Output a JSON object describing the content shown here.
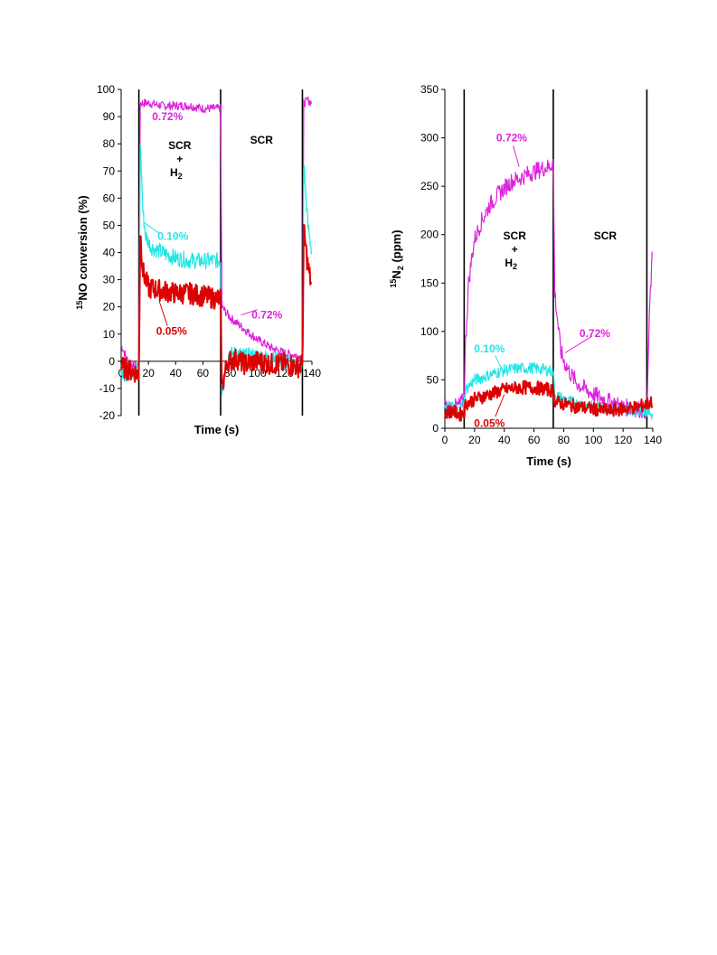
{
  "colors": {
    "magenta": "#dd22dd",
    "cyan": "#22e5e5",
    "red": "#dd0000",
    "axis": "#000000",
    "divider": "#000000"
  },
  "chart_data": [
    {
      "type": "line",
      "xlabel": "Time (s)",
      "ylabel_sup": "15",
      "ylabel_main": "NO conversion (%)",
      "xlim": [
        0,
        140
      ],
      "ylim": [
        -20,
        100
      ],
      "xticks": [
        0,
        20,
        40,
        60,
        80,
        100,
        120,
        140
      ],
      "yticks": [
        -20,
        -10,
        0,
        10,
        20,
        30,
        40,
        50,
        60,
        70,
        80,
        90,
        100
      ],
      "dividers_x": [
        13,
        73,
        133
      ],
      "regions": [
        {
          "lines": [
            "SCR",
            "+"
          ],
          "h2": "H",
          "h2sub": "2",
          "x": 43,
          "y": 78
        },
        {
          "lines": [
            "SCR"
          ],
          "x": 103,
          "y": 80
        }
      ],
      "series": [
        {
          "name": "0.72%",
          "color": "magenta",
          "points": [
            [
              0,
              6
            ],
            [
              5,
              0
            ],
            [
              10,
              -2
            ],
            [
              13,
              -1
            ],
            [
              14,
              95
            ],
            [
              20,
              95
            ],
            [
              30,
              94
            ],
            [
              40,
              94
            ],
            [
              50,
              94
            ],
            [
              60,
              93
            ],
            [
              70,
              93
            ],
            [
              73,
              93
            ],
            [
              74,
              20
            ],
            [
              80,
              16
            ],
            [
              90,
              12
            ],
            [
              100,
              8
            ],
            [
              110,
              5
            ],
            [
              120,
              3
            ],
            [
              130,
              2
            ],
            [
              133,
              1
            ],
            [
              134,
              95
            ],
            [
              137,
              96
            ],
            [
              140,
              95
            ]
          ]
        },
        {
          "name": "0.10%",
          "color": "cyan",
          "points": [
            [
              0,
              -4
            ],
            [
              5,
              -5
            ],
            [
              10,
              -3
            ],
            [
              13,
              -2
            ],
            [
              14,
              81
            ],
            [
              16,
              55
            ],
            [
              18,
              46
            ],
            [
              22,
              42
            ],
            [
              30,
              40
            ],
            [
              40,
              38
            ],
            [
              50,
              37
            ],
            [
              60,
              37
            ],
            [
              70,
              37
            ],
            [
              73,
              37
            ],
            [
              74,
              -10
            ],
            [
              78,
              2
            ],
            [
              85,
              3
            ],
            [
              90,
              2
            ],
            [
              100,
              2
            ],
            [
              110,
              1
            ],
            [
              120,
              0
            ],
            [
              130,
              -2
            ],
            [
              133,
              -3
            ],
            [
              134,
              73
            ],
            [
              137,
              50
            ],
            [
              140,
              40
            ]
          ]
        },
        {
          "name": "0.05%",
          "color": "red",
          "points": [
            [
              0,
              -2
            ],
            [
              5,
              -3
            ],
            [
              10,
              -4
            ],
            [
              13,
              -5
            ],
            [
              14,
              48
            ],
            [
              16,
              33
            ],
            [
              20,
              27
            ],
            [
              30,
              26
            ],
            [
              40,
              25
            ],
            [
              50,
              25
            ],
            [
              60,
              24
            ],
            [
              70,
              23
            ],
            [
              73,
              23
            ],
            [
              74,
              -10
            ],
            [
              78,
              0
            ],
            [
              85,
              1
            ],
            [
              90,
              -1
            ],
            [
              100,
              0
            ],
            [
              110,
              -1
            ],
            [
              120,
              -1
            ],
            [
              130,
              -2
            ],
            [
              133,
              -1
            ],
            [
              134,
              48
            ],
            [
              137,
              35
            ],
            [
              140,
              27
            ]
          ]
        }
      ],
      "annotations": [
        {
          "text": "0.72%",
          "color": "magenta",
          "x": 34,
          "y": 90,
          "lx1": 34,
          "ly1": 93,
          "lx2": 34,
          "ly2": 93
        },
        {
          "text": "0.10%",
          "color": "cyan",
          "x": 38,
          "y": 46,
          "lx1": 28,
          "ly1": 47,
          "lx2": 17,
          "ly2": 51
        },
        {
          "text": "0.05%",
          "color": "red",
          "x": 37,
          "y": 11,
          "lx1": 34,
          "ly1": 13,
          "lx2": 28,
          "ly2": 22
        },
        {
          "text": "0.72%",
          "color": "magenta",
          "x": 107,
          "y": 17,
          "lx1": 100,
          "ly1": 19,
          "lx2": 88,
          "ly2": 17
        }
      ]
    },
    {
      "type": "line",
      "xlabel": "Time (s)",
      "ylabel_sup": "15",
      "ylabel_main": "N",
      "ylabel_sub": "2",
      "ylabel_rest": " (ppm)",
      "xlim": [
        0,
        140
      ],
      "ylim": [
        0,
        350
      ],
      "xticks": [
        0,
        20,
        40,
        60,
        80,
        100,
        120,
        140
      ],
      "yticks": [
        0,
        50,
        100,
        150,
        200,
        250,
        300,
        350
      ],
      "dividers_x": [
        13,
        73,
        136
      ],
      "regions": [
        {
          "lines": [
            "SCR",
            "+"
          ],
          "h2": "H",
          "h2sub": "2",
          "x": 47,
          "y": 195
        },
        {
          "lines": [
            "SCR"
          ],
          "x": 108,
          "y": 195
        }
      ],
      "series": [
        {
          "name": "0.72%",
          "color": "magenta",
          "points": [
            [
              0,
              22
            ],
            [
              5,
              20
            ],
            [
              10,
              24
            ],
            [
              13,
              30
            ],
            [
              14,
              90
            ],
            [
              16,
              150
            ],
            [
              18,
              175
            ],
            [
              20,
              195
            ],
            [
              25,
              215
            ],
            [
              30,
              230
            ],
            [
              35,
              240
            ],
            [
              40,
              248
            ],
            [
              45,
              255
            ],
            [
              50,
              258
            ],
            [
              55,
              262
            ],
            [
              60,
              265
            ],
            [
              65,
              268
            ],
            [
              70,
              270
            ],
            [
              73,
              275
            ],
            [
              74,
              140
            ],
            [
              76,
              110
            ],
            [
              78,
              80
            ],
            [
              80,
              70
            ],
            [
              85,
              55
            ],
            [
              90,
              45
            ],
            [
              95,
              40
            ],
            [
              100,
              35
            ],
            [
              110,
              28
            ],
            [
              120,
              22
            ],
            [
              130,
              20
            ],
            [
              136,
              18
            ],
            [
              138,
              130
            ],
            [
              140,
              185
            ]
          ]
        },
        {
          "name": "0.10%",
          "color": "cyan",
          "points": [
            [
              0,
              25
            ],
            [
              5,
              22
            ],
            [
              10,
              20
            ],
            [
              13,
              28
            ],
            [
              14,
              40
            ],
            [
              20,
              50
            ],
            [
              30,
              55
            ],
            [
              40,
              60
            ],
            [
              50,
              62
            ],
            [
              60,
              62
            ],
            [
              70,
              60
            ],
            [
              73,
              58
            ],
            [
              74,
              35
            ],
            [
              80,
              30
            ],
            [
              90,
              25
            ],
            [
              100,
              22
            ],
            [
              110,
              20
            ],
            [
              120,
              20
            ],
            [
              130,
              18
            ],
            [
              136,
              18
            ],
            [
              140,
              15
            ]
          ]
        },
        {
          "name": "0.05%",
          "color": "red",
          "points": [
            [
              0,
              15
            ],
            [
              5,
              18
            ],
            [
              10,
              14
            ],
            [
              13,
              16
            ],
            [
              14,
              25
            ],
            [
              20,
              30
            ],
            [
              30,
              35
            ],
            [
              40,
              40
            ],
            [
              50,
              42
            ],
            [
              60,
              42
            ],
            [
              70,
              40
            ],
            [
              73,
              38
            ],
            [
              74,
              28
            ],
            [
              80,
              25
            ],
            [
              90,
              22
            ],
            [
              100,
              20
            ],
            [
              110,
              18
            ],
            [
              120,
              20
            ],
            [
              130,
              22
            ],
            [
              136,
              25
            ],
            [
              140,
              28
            ]
          ]
        }
      ],
      "annotations": [
        {
          "text": "0.72%",
          "color": "magenta",
          "x": 45,
          "y": 300,
          "lx1": 46,
          "ly1": 292,
          "lx2": 50,
          "ly2": 270
        },
        {
          "text": "0.10%",
          "color": "cyan",
          "x": 30,
          "y": 82,
          "lx1": 34,
          "ly1": 75,
          "lx2": 38,
          "ly2": 62
        },
        {
          "text": "0.05%",
          "color": "red",
          "x": 30,
          "y": 5,
          "lx1": 34,
          "ly1": 12,
          "lx2": 40,
          "ly2": 35
        },
        {
          "text": "0.72%",
          "color": "magenta",
          "x": 101,
          "y": 98,
          "lx1": 99,
          "ly1": 95,
          "lx2": 81,
          "ly2": 78
        }
      ]
    }
  ]
}
